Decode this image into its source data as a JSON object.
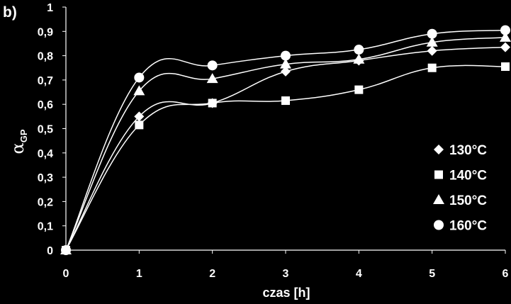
{
  "panel_label": "b)",
  "colors": {
    "background": "#000000",
    "foreground": "#ffffff"
  },
  "chart_data": {
    "type": "scatter",
    "xlabel": "czas [h]",
    "ylabel": {
      "symbol": "α",
      "subscript": "GP"
    },
    "xlim": [
      0,
      6
    ],
    "ylim": [
      0,
      1
    ],
    "x_ticks": [
      "0",
      "1",
      "2",
      "3",
      "4",
      "5",
      "6"
    ],
    "y_ticks": [
      "0",
      "0,1",
      "0,2",
      "0,3",
      "0,4",
      "0,5",
      "0,6",
      "0,7",
      "0,8",
      "0,9",
      "1"
    ],
    "grid": false,
    "legend_position": "bottom-right",
    "trend_lines": "smoothed curve through each series",
    "x": [
      0,
      1,
      2,
      3,
      4,
      5,
      6
    ],
    "series": [
      {
        "name": "130°C",
        "marker": "diamond",
        "values": [
          0.0,
          0.55,
          0.605,
          0.735,
          0.78,
          0.82,
          0.835
        ]
      },
      {
        "name": "140°C",
        "marker": "square",
        "values": [
          0.0,
          0.515,
          0.605,
          0.615,
          0.66,
          0.75,
          0.755
        ]
      },
      {
        "name": "150°C",
        "marker": "triangle",
        "values": [
          0.0,
          0.655,
          0.705,
          0.765,
          0.785,
          0.855,
          0.875
        ]
      },
      {
        "name": "160°C",
        "marker": "circle",
        "values": [
          0.0,
          0.71,
          0.76,
          0.8,
          0.825,
          0.89,
          0.905
        ]
      }
    ]
  }
}
